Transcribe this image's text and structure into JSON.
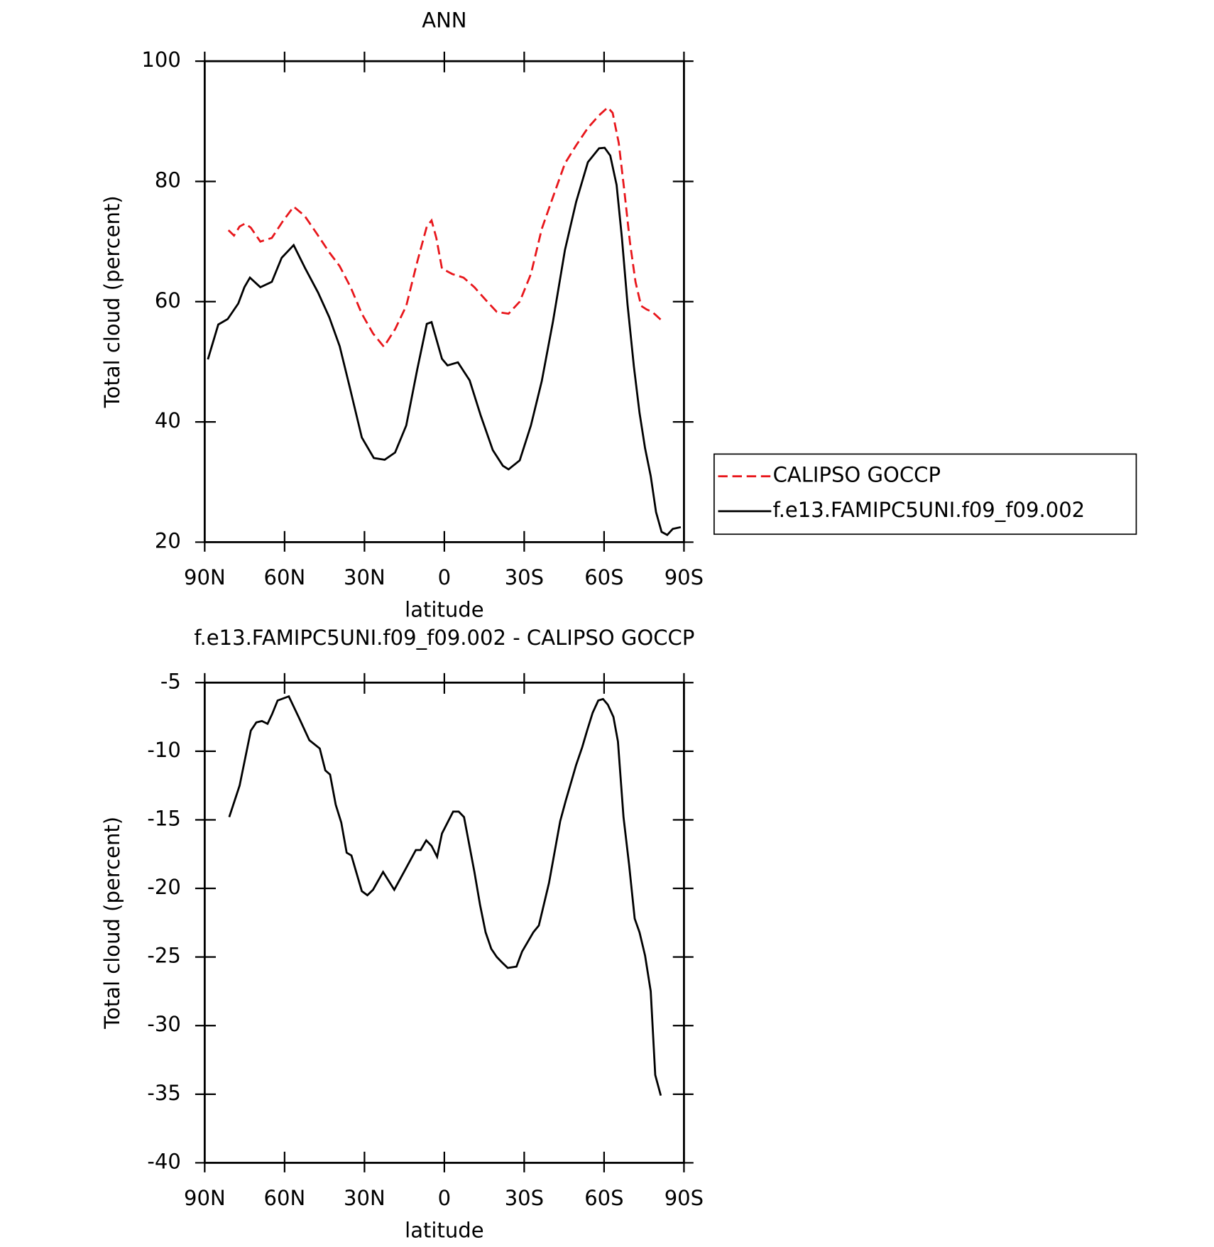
{
  "chart_data": [
    {
      "type": "line",
      "title": "ANN",
      "x_label": "latitude",
      "y_label": "Total cloud (percent)",
      "xlim": [
        90,
        -90
      ],
      "xticks": [
        {
          "value": 90,
          "label": "90N"
        },
        {
          "value": 60,
          "label": "60N"
        },
        {
          "value": 30,
          "label": "30N"
        },
        0,
        {
          "value": -30,
          "label": "30S"
        },
        {
          "value": -60,
          "label": "60S"
        },
        {
          "value": -90,
          "label": "90S"
        }
      ],
      "ylim": [
        20,
        100
      ],
      "yticks": [
        20,
        40,
        60,
        80,
        100
      ],
      "legend": "right",
      "series": [
        {
          "name": "CALIPSO GOCCP",
          "color": "#e8161b",
          "dashed": true,
          "x": [
            81.1,
            79.0,
            76.9,
            74.8,
            72.7,
            69.1,
            64.8,
            60.8,
            56.6,
            52.5,
            47.7,
            43.2,
            39.3,
            35.2,
            31.0,
            26.8,
            22.7,
            18.5,
            14.3,
            10.2,
            6.6,
            4.8,
            3.0,
            0.9,
            -3.0,
            -7.2,
            -11.3,
            -15.5,
            -19.7,
            -24.1,
            -28.3,
            -32.5,
            -36.6,
            -40.8,
            -45.3,
            -49.5,
            -53.9,
            -58.1,
            -61.4,
            -63.2,
            -65.5,
            -67.6,
            -69.7,
            -71.8,
            -73.9,
            -76.0,
            -78.1,
            -81.3
          ],
          "values": [
            71.9,
            71.0,
            72.5,
            73.0,
            72.3,
            70.0,
            70.6,
            73.3,
            75.8,
            74.3,
            71.2,
            68.2,
            65.9,
            62.4,
            58.0,
            54.7,
            52.5,
            55.4,
            59.3,
            66.6,
            72.5,
            73.5,
            70.6,
            65.5,
            64.6,
            64.0,
            62.4,
            60.3,
            58.3,
            58.0,
            60.0,
            64.6,
            72.1,
            77.4,
            83.0,
            86.0,
            88.9,
            91.0,
            92.3,
            91.4,
            86.4,
            78.5,
            69.9,
            63.3,
            59.3,
            58.7,
            58.3,
            57.0
          ]
        },
        {
          "name": "f.e13.FAMIPC5UNI.f09_f09.002",
          "color": "#000000",
          "dashed": false,
          "x": [
            88.8,
            84.9,
            81.4,
            77.4,
            75.1,
            73.0,
            69.1,
            64.8,
            61.1,
            56.6,
            52.2,
            47.4,
            43.2,
            39.3,
            35.5,
            31.0,
            26.5,
            22.4,
            18.5,
            14.3,
            10.2,
            6.6,
            4.8,
            0.9,
            -1.2,
            -5.1,
            -9.5,
            -13.7,
            -18.2,
            -22.0,
            -24.1,
            -28.3,
            -32.5,
            -36.6,
            -40.8,
            -45.3,
            -49.5,
            -53.9,
            -58.1,
            -60.2,
            -62.3,
            -64.7,
            -66.7,
            -68.8,
            -71.2,
            -73.3,
            -75.4,
            -77.5,
            -79.5,
            -81.6,
            -83.7,
            -85.8,
            -88.8
          ],
          "values": [
            50.4,
            56.2,
            57.1,
            59.7,
            62.4,
            64.0,
            62.4,
            63.3,
            67.3,
            69.4,
            65.5,
            61.5,
            57.4,
            52.6,
            45.7,
            37.4,
            34.0,
            33.7,
            34.9,
            39.4,
            48.7,
            56.3,
            56.6,
            50.5,
            49.4,
            49.9,
            46.9,
            41.0,
            35.3,
            32.7,
            32.1,
            33.6,
            39.4,
            46.8,
            56.7,
            68.6,
            76.6,
            83.2,
            85.5,
            85.6,
            84.3,
            79.4,
            70.6,
            59.5,
            49.2,
            41.5,
            35.6,
            31.0,
            25.0,
            21.7,
            21.2,
            22.2,
            22.5
          ]
        }
      ]
    },
    {
      "type": "line",
      "title": "f.e13.FAMIPC5UNI.f09_f09.002 - CALIPSO GOCCP",
      "x_label": "latitude",
      "y_label": "Total cloud (percent)",
      "xlim": [
        90,
        -90
      ],
      "xticks": [
        {
          "value": 90,
          "label": "90N"
        },
        {
          "value": 60,
          "label": "60N"
        },
        {
          "value": 30,
          "label": "30N"
        },
        0,
        {
          "value": -30,
          "label": "30S"
        },
        {
          "value": -60,
          "label": "60S"
        },
        {
          "value": -90,
          "label": "90S"
        }
      ],
      "ylim": [
        -40,
        -5
      ],
      "yticks": [
        -40,
        -35,
        -30,
        -25,
        -20,
        -15,
        -10,
        -5
      ],
      "series": [
        {
          "color": "#000000",
          "dashed": false,
          "x": [
            80.8,
            76.9,
            72.7,
            70.6,
            68.5,
            66.4,
            64.7,
            62.6,
            58.4,
            54.5,
            50.7,
            46.8,
            44.7,
            42.9,
            40.8,
            38.7,
            36.7,
            34.9,
            33.1,
            31.0,
            28.9,
            26.8,
            23.0,
            18.8,
            14.6,
            10.7,
            8.9,
            6.8,
            4.8,
            2.7,
            0.9,
            -3.3,
            -5.4,
            -7.4,
            -11.3,
            -13.4,
            -15.5,
            -17.6,
            -19.7,
            -21.7,
            -23.8,
            -27.1,
            -29.2,
            -33.4,
            -35.5,
            -39.3,
            -43.5,
            -45.6,
            -47.7,
            -49.5,
            -51.8,
            -53.6,
            -55.7,
            -57.8,
            -59.6,
            -61.4,
            -63.5,
            -65.2,
            -67.3,
            -69.4,
            -71.5,
            -73.3,
            -75.4,
            -77.5,
            -79.2,
            -81.3
          ],
          "values": [
            -14.8,
            -12.5,
            -8.5,
            -7.9,
            -7.8,
            -8.0,
            -7.3,
            -6.3,
            -6.0,
            -7.6,
            -9.2,
            -9.8,
            -11.4,
            -11.7,
            -13.9,
            -15.2,
            -17.4,
            -17.6,
            -18.8,
            -20.2,
            -20.5,
            -20.1,
            -18.8,
            -20.1,
            -18.6,
            -17.2,
            -17.2,
            -16.5,
            -16.9,
            -17.7,
            -16.0,
            -14.4,
            -14.4,
            -14.8,
            -18.8,
            -21.2,
            -23.2,
            -24.4,
            -25.0,
            -25.4,
            -25.8,
            -25.7,
            -24.6,
            -23.2,
            -22.7,
            -19.6,
            -15.1,
            -13.6,
            -12.2,
            -11.0,
            -9.7,
            -8.5,
            -7.2,
            -6.3,
            -6.2,
            -6.6,
            -7.5,
            -9.3,
            -14.8,
            -18.3,
            -22.2,
            -23.2,
            -24.9,
            -27.5,
            -33.6,
            -35.1
          ]
        }
      ]
    }
  ]
}
